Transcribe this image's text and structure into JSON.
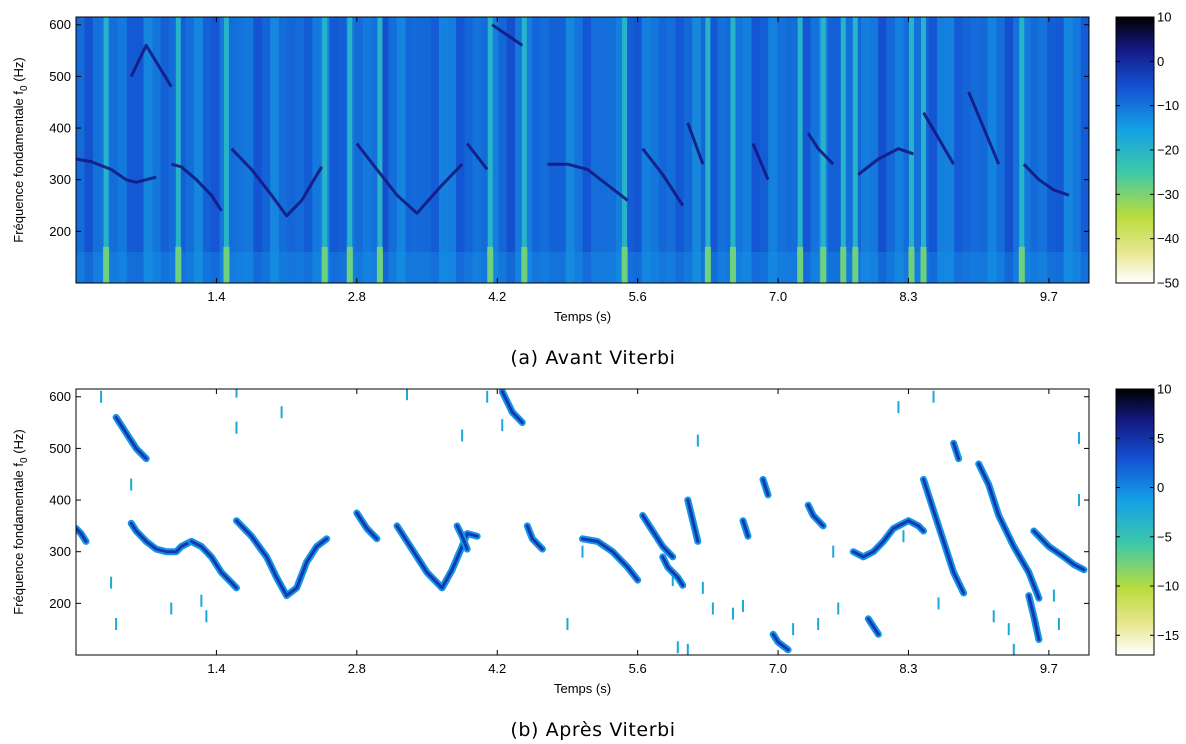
{
  "figures": [
    {
      "caption": "(a) Avant Viterbi",
      "chart_data": {
        "type": "heatmap",
        "xlabel": "Temps (s)",
        "ylabel": "Fréquence fondamentale f",
        "ylabel_sub": "0",
        "ylabel_unit": " (Hz)",
        "xlim": [
          0,
          10.1
        ],
        "ylim": [
          100,
          615
        ],
        "xticks": [
          1.4,
          2.8,
          4.2,
          5.6,
          7.0,
          8.3,
          9.7
        ],
        "xtick_labels": [
          "1.4",
          "2.8",
          "4.2",
          "5.6",
          "7.0",
          "8.3",
          "9.7"
        ],
        "yticks": [
          200,
          300,
          400,
          500,
          600
        ],
        "yticks_labels": [
          "200",
          "300",
          "400",
          "500",
          "600"
        ],
        "colorbar": {
          "min": -50,
          "max": 10,
          "ticks": [
            10,
            0,
            -10,
            -20,
            -30,
            -40,
            -50
          ],
          "tick_labels": [
            "10",
            "0",
            "−10",
            "−20",
            "−30",
            "−40",
            "−50"
          ]
        },
        "bright_columns_s": [
          0.3,
          1.02,
          1.5,
          2.48,
          2.73,
          3.03,
          4.13,
          4.47,
          5.47,
          6.3,
          6.55,
          7.22,
          7.45,
          7.65,
          7.77,
          8.33,
          8.45,
          9.43
        ],
        "pitch_tracks": [
          {
            "x": [
              0.0,
              0.15,
              0.35,
              0.5,
              0.6,
              0.7,
              0.8
            ],
            "y": [
              340,
              335,
              320,
              300,
              295,
              300,
              305
            ]
          },
          {
            "x": [
              0.55,
              0.7,
              0.95
            ],
            "y": [
              500,
              560,
              480
            ]
          },
          {
            "x": [
              0.95,
              1.05,
              1.2,
              1.35,
              1.45
            ],
            "y": [
              330,
              325,
              300,
              270,
              240
            ]
          },
          {
            "x": [
              1.55,
              1.75,
              1.95,
              2.1,
              2.25,
              2.45
            ],
            "y": [
              360,
              320,
              270,
              230,
              260,
              325
            ]
          },
          {
            "x": [
              2.8,
              3.0,
              3.2,
              3.4,
              3.65,
              3.85
            ],
            "y": [
              370,
              320,
              270,
              235,
              290,
              330
            ]
          },
          {
            "x": [
              3.9,
              4.1
            ],
            "y": [
              370,
              320
            ]
          },
          {
            "x": [
              4.15,
              4.3,
              4.45
            ],
            "y": [
              600,
              580,
              560
            ]
          },
          {
            "x": [
              4.7,
              4.9,
              5.1,
              5.3,
              5.5
            ],
            "y": [
              330,
              330,
              320,
              290,
              260
            ]
          },
          {
            "x": [
              5.65,
              5.85,
              6.05
            ],
            "y": [
              360,
              310,
              250
            ]
          },
          {
            "x": [
              6.1,
              6.25
            ],
            "y": [
              410,
              330
            ]
          },
          {
            "x": [
              6.75,
              6.9
            ],
            "y": [
              370,
              300
            ]
          },
          {
            "x": [
              7.3,
              7.4,
              7.55
            ],
            "y": [
              390,
              360,
              330
            ]
          },
          {
            "x": [
              7.8,
              8.0,
              8.2,
              8.35
            ],
            "y": [
              310,
              340,
              360,
              350
            ]
          },
          {
            "x": [
              8.45,
              8.6,
              8.75
            ],
            "y": [
              430,
              380,
              330
            ]
          },
          {
            "x": [
              8.9,
              9.05,
              9.2
            ],
            "y": [
              470,
              400,
              330
            ]
          },
          {
            "x": [
              9.45,
              9.6,
              9.75,
              9.9
            ],
            "y": [
              330,
              300,
              280,
              270
            ]
          }
        ]
      }
    },
    {
      "caption": "(b) Après Viterbi",
      "chart_data": {
        "type": "heatmap",
        "xlabel": "Temps (s)",
        "ylabel": "Fréquence fondamentale f",
        "ylabel_sub": "0",
        "ylabel_unit": " (Hz)",
        "xlim": [
          0,
          10.1
        ],
        "ylim": [
          100,
          615
        ],
        "xticks": [
          1.4,
          2.8,
          4.2,
          5.6,
          7.0,
          8.3,
          9.7
        ],
        "xtick_labels": [
          "1.4",
          "2.8",
          "4.2",
          "5.6",
          "7.0",
          "8.3",
          "9.7"
        ],
        "yticks": [
          200,
          300,
          400,
          500,
          600
        ],
        "yticks_labels": [
          "200",
          "300",
          "400",
          "500",
          "600"
        ],
        "colorbar": {
          "min": -17,
          "max": 10,
          "ticks": [
            10,
            5,
            0,
            -5,
            -10,
            -15
          ],
          "tick_labels": [
            "10",
            "5",
            "0",
            "−5",
            "−10",
            "−15"
          ]
        },
        "pitch_tracks": [
          {
            "x": [
              0.0,
              0.05,
              0.1
            ],
            "y": [
              345,
              335,
              320
            ]
          },
          {
            "x": [
              0.4,
              0.5,
              0.6,
              0.7
            ],
            "y": [
              560,
              530,
              500,
              480
            ]
          },
          {
            "x": [
              0.55,
              0.6,
              0.7,
              0.8,
              0.9,
              1.0,
              1.05,
              1.15,
              1.25
            ],
            "y": [
              355,
              340,
              320,
              305,
              300,
              300,
              310,
              320,
              310
            ]
          },
          {
            "x": [
              1.15,
              1.25,
              1.35,
              1.45,
              1.55,
              1.6
            ],
            "y": [
              320,
              310,
              290,
              260,
              240,
              230
            ]
          },
          {
            "x": [
              1.6,
              1.75,
              1.9,
              2.0,
              2.1,
              2.2,
              2.3,
              2.4,
              2.5
            ],
            "y": [
              360,
              330,
              290,
              250,
              215,
              230,
              280,
              310,
              325
            ]
          },
          {
            "x": [
              2.8,
              2.9,
              3.0
            ],
            "y": [
              375,
              345,
              325
            ]
          },
          {
            "x": [
              3.2,
              3.35,
              3.5,
              3.65,
              3.75,
              3.85,
              3.9,
              4.0
            ],
            "y": [
              350,
              305,
              260,
              230,
              265,
              310,
              335,
              330
            ]
          },
          {
            "x": [
              3.8,
              3.85,
              3.9
            ],
            "y": [
              350,
              330,
              305
            ]
          },
          {
            "x": [
              4.25,
              4.35,
              4.45
            ],
            "y": [
              610,
              570,
              550
            ]
          },
          {
            "x": [
              4.5,
              4.55,
              4.65
            ],
            "y": [
              350,
              325,
              305
            ]
          },
          {
            "x": [
              5.05,
              5.2,
              5.35,
              5.5,
              5.6
            ],
            "y": [
              325,
              320,
              300,
              270,
              245
            ]
          },
          {
            "x": [
              5.65,
              5.75,
              5.85,
              5.95
            ],
            "y": [
              370,
              340,
              310,
              290
            ]
          },
          {
            "x": [
              5.85,
              5.9,
              6.0,
              6.05
            ],
            "y": [
              290,
              270,
              250,
              235
            ]
          },
          {
            "x": [
              6.1,
              6.15,
              6.2
            ],
            "y": [
              400,
              360,
              320
            ]
          },
          {
            "x": [
              6.65,
              6.7
            ],
            "y": [
              360,
              330
            ]
          },
          {
            "x": [
              6.85,
              6.9
            ],
            "y": [
              440,
              410
            ]
          },
          {
            "x": [
              7.3,
              7.35,
              7.45
            ],
            "y": [
              390,
              370,
              350
            ]
          },
          {
            "x": [
              7.75,
              7.85,
              7.95,
              8.05,
              8.15,
              8.3,
              8.4,
              8.45
            ],
            "y": [
              300,
              290,
              300,
              320,
              345,
              360,
              350,
              340
            ]
          },
          {
            "x": [
              8.45,
              8.55,
              8.65,
              8.75,
              8.85
            ],
            "y": [
              440,
              380,
              320,
              260,
              220
            ]
          },
          {
            "x": [
              8.75,
              8.8
            ],
            "y": [
              510,
              480
            ]
          },
          {
            "x": [
              9.0,
              9.1,
              9.2,
              9.35,
              9.5,
              9.6
            ],
            "y": [
              470,
              430,
              370,
              310,
              260,
              210
            ]
          },
          {
            "x": [
              9.55,
              9.7,
              9.85,
              9.95,
              10.05
            ],
            "y": [
              340,
              310,
              290,
              275,
              265
            ]
          },
          {
            "x": [
              6.95,
              7.0,
              7.1
            ],
            "y": [
              140,
              125,
              110
            ]
          },
          {
            "x": [
              7.9,
              8.0
            ],
            "y": [
              170,
              140
            ]
          },
          {
            "x": [
              9.5,
              9.55,
              9.6
            ],
            "y": [
              215,
              175,
              130
            ]
          }
        ],
        "specks": [
          {
            "x": 0.25,
            "y": 600
          },
          {
            "x": 0.35,
            "y": 240
          },
          {
            "x": 0.4,
            "y": 160
          },
          {
            "x": 0.55,
            "y": 430
          },
          {
            "x": 0.95,
            "y": 190
          },
          {
            "x": 1.25,
            "y": 205
          },
          {
            "x": 1.3,
            "y": 175
          },
          {
            "x": 1.6,
            "y": 540
          },
          {
            "x": 1.6,
            "y": 610
          },
          {
            "x": 2.05,
            "y": 570
          },
          {
            "x": 3.3,
            "y": 605
          },
          {
            "x": 3.85,
            "y": 525
          },
          {
            "x": 4.1,
            "y": 600
          },
          {
            "x": 4.25,
            "y": 545
          },
          {
            "x": 4.9,
            "y": 160
          },
          {
            "x": 5.05,
            "y": 300
          },
          {
            "x": 5.95,
            "y": 245
          },
          {
            "x": 6.0,
            "y": 115
          },
          {
            "x": 6.1,
            "y": 110
          },
          {
            "x": 6.2,
            "y": 515
          },
          {
            "x": 6.25,
            "y": 230
          },
          {
            "x": 6.35,
            "y": 190
          },
          {
            "x": 6.55,
            "y": 180
          },
          {
            "x": 6.65,
            "y": 195
          },
          {
            "x": 7.15,
            "y": 150
          },
          {
            "x": 7.4,
            "y": 160
          },
          {
            "x": 7.55,
            "y": 300
          },
          {
            "x": 7.6,
            "y": 190
          },
          {
            "x": 8.2,
            "y": 580
          },
          {
            "x": 8.25,
            "y": 330
          },
          {
            "x": 8.55,
            "y": 600
          },
          {
            "x": 8.6,
            "y": 200
          },
          {
            "x": 9.15,
            "y": 175
          },
          {
            "x": 9.3,
            "y": 150
          },
          {
            "x": 9.35,
            "y": 110
          },
          {
            "x": 9.75,
            "y": 215
          },
          {
            "x": 9.8,
            "y": 160
          },
          {
            "x": 10.0,
            "y": 520
          },
          {
            "x": 10.0,
            "y": 400
          }
        ]
      }
    }
  ]
}
